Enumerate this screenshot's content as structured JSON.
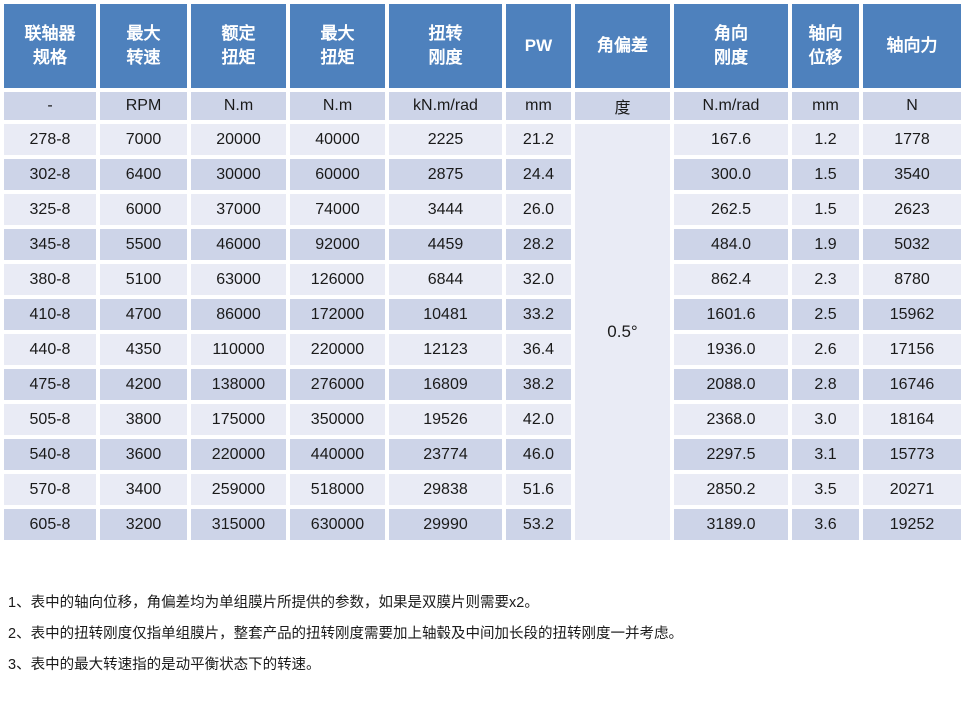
{
  "colors": {
    "header_bg": "#4E81BD",
    "band_dark": "#CDD4E8",
    "band_light": "#E9EBF5",
    "header_text": "#FFFFFF",
    "body_text": "#1A1A1A",
    "page_bg": "#FFFFFF"
  },
  "table": {
    "columns": [
      {
        "title": "联轴器\n规格",
        "unit": "-"
      },
      {
        "title": "最大\n转速",
        "unit": "RPM"
      },
      {
        "title": "额定\n扭矩",
        "unit": "N.m"
      },
      {
        "title": "最大\n扭矩",
        "unit": "N.m"
      },
      {
        "title": "扭转\n刚度",
        "unit": "kN.m/rad"
      },
      {
        "title": "PW",
        "unit": "mm"
      },
      {
        "title": "角偏差",
        "unit": "度"
      },
      {
        "title": "角向\n刚度",
        "unit": "N.m/rad"
      },
      {
        "title": "轴向\n位移",
        "unit": "mm"
      },
      {
        "title": "轴向力",
        "unit": "N"
      }
    ],
    "angular_deviation_merged_value": "0.5°",
    "rows": [
      [
        "278-8",
        "7000",
        "20000",
        "40000",
        "2225",
        "21.2",
        "167.6",
        "1.2",
        "1778"
      ],
      [
        "302-8",
        "6400",
        "30000",
        "60000",
        "2875",
        "24.4",
        "300.0",
        "1.5",
        "3540"
      ],
      [
        "325-8",
        "6000",
        "37000",
        "74000",
        "3444",
        "26.0",
        "262.5",
        "1.5",
        "2623"
      ],
      [
        "345-8",
        "5500",
        "46000",
        "92000",
        "4459",
        "28.2",
        "484.0",
        "1.9",
        "5032"
      ],
      [
        "380-8",
        "5100",
        "63000",
        "126000",
        "6844",
        "32.0",
        "862.4",
        "2.3",
        "8780"
      ],
      [
        "410-8",
        "4700",
        "86000",
        "172000",
        "10481",
        "33.2",
        "1601.6",
        "2.5",
        "15962"
      ],
      [
        "440-8",
        "4350",
        "110000",
        "220000",
        "12123",
        "36.4",
        "1936.0",
        "2.6",
        "17156"
      ],
      [
        "475-8",
        "4200",
        "138000",
        "276000",
        "16809",
        "38.2",
        "2088.0",
        "2.8",
        "16746"
      ],
      [
        "505-8",
        "3800",
        "175000",
        "350000",
        "19526",
        "42.0",
        "2368.0",
        "3.0",
        "18164"
      ],
      [
        "540-8",
        "3600",
        "220000",
        "440000",
        "23774",
        "46.0",
        "2297.5",
        "3.1",
        "15773"
      ],
      [
        "570-8",
        "3400",
        "259000",
        "518000",
        "29838",
        "51.6",
        "2850.2",
        "3.5",
        "20271"
      ],
      [
        "605-8",
        "3200",
        "315000",
        "630000",
        "29990",
        "53.2",
        "3189.0",
        "3.6",
        "19252"
      ]
    ]
  },
  "notes": [
    "1、表中的轴向位移，角偏差均为单组膜片所提供的参数，如果是双膜片则需要x2。",
    "2、表中的扭转刚度仅指单组膜片，整套产品的扭转刚度需要加上轴毂及中间加长段的扭转刚度一并考虑。",
    "3、表中的最大转速指的是动平衡状态下的转速。"
  ]
}
